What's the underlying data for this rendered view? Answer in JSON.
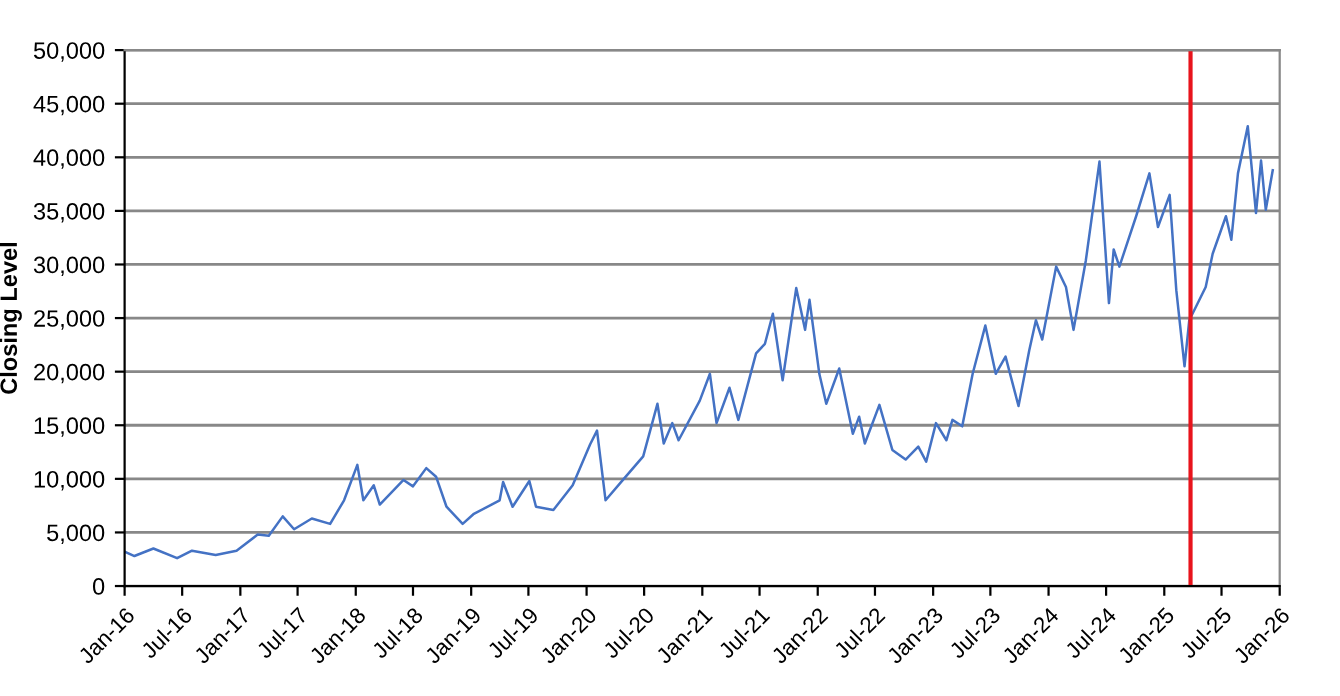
{
  "chart_data": {
    "type": "line",
    "ylabel": "Closing Level",
    "x": [
      "2016-01-01",
      "2016-02-01",
      "2016-04-01",
      "2016-06-15",
      "2016-08-01",
      "2016-10-15",
      "2016-12-20",
      "2017-02-25",
      "2017-04-01",
      "2017-05-15",
      "2017-06-20",
      "2017-08-15",
      "2017-10-12",
      "2017-11-25",
      "2018-01-06",
      "2018-01-25",
      "2018-02-27",
      "2018-03-18",
      "2018-06-01",
      "2018-07-01",
      "2018-08-12",
      "2018-09-12",
      "2018-10-15",
      "2018-12-05",
      "2019-01-08",
      "2019-04-01",
      "2019-04-12",
      "2019-05-12",
      "2019-07-04",
      "2019-07-25",
      "2019-09-18",
      "2019-11-18",
      "2020-01-12",
      "2020-02-03",
      "2020-03-01",
      "2020-04-25",
      "2020-06-28",
      "2020-08-12",
      "2020-09-01",
      "2020-09-28",
      "2020-10-18",
      "2020-12-24",
      "2021-01-25",
      "2021-02-15",
      "2021-03-28",
      "2021-04-25",
      "2021-06-20",
      "2021-07-18",
      "2021-08-12",
      "2021-09-12",
      "2021-10-25",
      "2021-11-22",
      "2021-12-06",
      "2022-01-06",
      "2022-01-28",
      "2022-03-10",
      "2022-04-22",
      "2022-05-12",
      "2022-05-30",
      "2022-07-15",
      "2022-08-25",
      "2022-10-06",
      "2022-11-15",
      "2022-12-10",
      "2023-01-10",
      "2023-02-12",
      "2023-03-03",
      "2023-04-03",
      "2023-05-06",
      "2023-06-15",
      "2023-07-18",
      "2023-08-18",
      "2023-09-28",
      "2023-11-01",
      "2023-11-22",
      "2023-12-12",
      "2024-01-25",
      "2024-02-25",
      "2024-03-20",
      "2024-04-28",
      "2024-06-10",
      "2024-07-10",
      "2024-07-25",
      "2024-08-12",
      "2024-10-04",
      "2024-11-15",
      "2024-12-12",
      "2025-01-18",
      "2025-02-08",
      "2025-03-06",
      "2025-03-21",
      "2025-04-12",
      "2025-05-12",
      "2025-06-03",
      "2025-07-15",
      "2025-08-01",
      "2025-08-22",
      "2025-09-22",
      "2025-10-18",
      "2025-11-03",
      "2025-11-18",
      "2025-12-10"
    ],
    "series": [
      {
        "color": "#4472c4",
        "values": [
          3200,
          2800,
          3500,
          2600,
          3300,
          2900,
          3300,
          4800,
          4700,
          6500,
          5300,
          6300,
          5800,
          8000,
          11300,
          8000,
          9400,
          7600,
          9900,
          9300,
          11000,
          10200,
          7400,
          5800,
          6700,
          8000,
          9700,
          7400,
          9800,
          7400,
          7100,
          9400,
          13200,
          14500,
          8000,
          9900,
          12100,
          17000,
          13300,
          15200,
          13600,
          17300,
          19800,
          15200,
          18500,
          15500,
          21700,
          22600,
          25400,
          19200,
          27800,
          23900,
          26700,
          19800,
          17000,
          20300,
          14200,
          15800,
          13300,
          16900,
          12700,
          11800,
          13000,
          11600,
          15200,
          13600,
          15500,
          14900,
          19800,
          24300,
          19800,
          21400,
          16800,
          22000,
          24800,
          23000,
          29800,
          27900,
          23900,
          30400,
          39600,
          26400,
          31400,
          29800,
          34500,
          38500,
          33500,
          36500,
          27600,
          20500,
          24800,
          26100,
          27900,
          31000,
          34500,
          32300,
          38500,
          42900,
          34800,
          39700,
          35100,
          38800
        ]
      }
    ],
    "xlim": [
      "2016-01-01",
      "2026-01-01"
    ],
    "xticks": [
      {
        "value": "2016-01-01",
        "label": "Jan-16"
      },
      {
        "value": "2016-07-01",
        "label": "Jul-16"
      },
      {
        "value": "2017-01-01",
        "label": "Jan-17"
      },
      {
        "value": "2017-07-01",
        "label": "Jul-17"
      },
      {
        "value": "2018-01-01",
        "label": "Jan-18"
      },
      {
        "value": "2018-07-01",
        "label": "Jul-18"
      },
      {
        "value": "2019-01-01",
        "label": "Jan-19"
      },
      {
        "value": "2019-07-01",
        "label": "Jul-19"
      },
      {
        "value": "2020-01-01",
        "label": "Jan-20"
      },
      {
        "value": "2020-07-01",
        "label": "Jul-20"
      },
      {
        "value": "2021-01-01",
        "label": "Jan-21"
      },
      {
        "value": "2021-07-01",
        "label": "Jul-21"
      },
      {
        "value": "2022-01-01",
        "label": "Jan-22"
      },
      {
        "value": "2022-07-01",
        "label": "Jul-22"
      },
      {
        "value": "2023-01-01",
        "label": "Jan-23"
      },
      {
        "value": "2023-07-01",
        "label": "Jul-23"
      },
      {
        "value": "2024-01-01",
        "label": "Jan-24"
      },
      {
        "value": "2024-07-01",
        "label": "Jul-24"
      },
      {
        "value": "2025-01-01",
        "label": "Jan-25"
      },
      {
        "value": "2025-07-01",
        "label": "Jul-25"
      },
      {
        "value": "2026-01-01",
        "label": "Jan-26"
      }
    ],
    "ylim": [
      0,
      50000
    ],
    "yticks": [
      {
        "value": 0,
        "label": "0"
      },
      {
        "value": 5000,
        "label": "5,000"
      },
      {
        "value": 10000,
        "label": "10,000"
      },
      {
        "value": 15000,
        "label": "15,000"
      },
      {
        "value": 20000,
        "label": "20,000"
      },
      {
        "value": 25000,
        "label": "25,000"
      },
      {
        "value": 30000,
        "label": "30,000"
      },
      {
        "value": 35000,
        "label": "35,000"
      },
      {
        "value": 40000,
        "label": "40,000"
      },
      {
        "value": 45000,
        "label": "45,000"
      },
      {
        "value": 50000,
        "label": "50,000"
      }
    ],
    "grid": "y",
    "ref_lines": [
      {
        "axis": "x",
        "value": "2025-03-25",
        "color": "#e8141c"
      }
    ]
  }
}
